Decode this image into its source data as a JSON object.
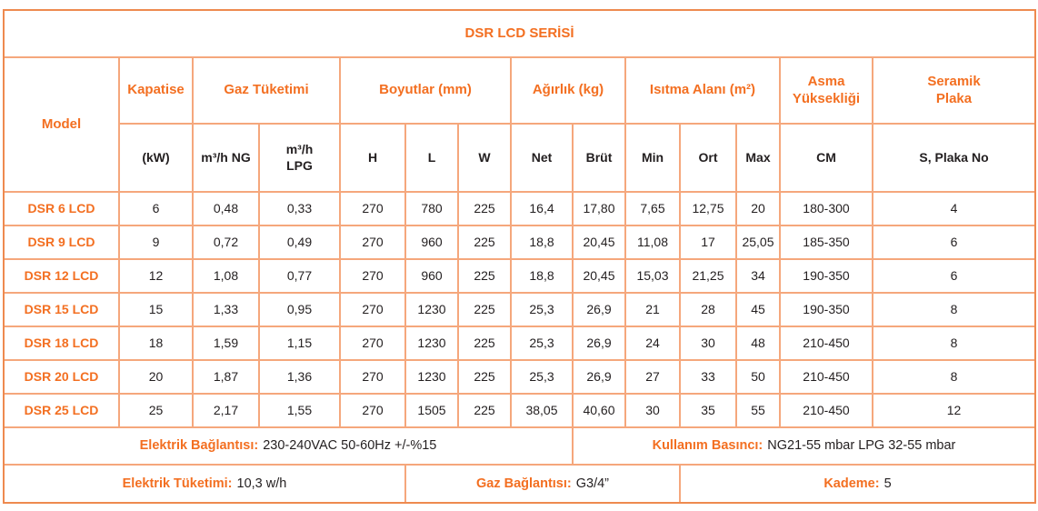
{
  "title": "DSR LCD SERİSİ",
  "colors": {
    "accent_text": "#f36f21",
    "grid_line": "#f5a77c",
    "outer_border": "#ee8a4f",
    "data_text": "#231f20"
  },
  "header": {
    "model_label": "Model",
    "groups": [
      {
        "label": "Kapatise",
        "subs": [
          "(kW)"
        ]
      },
      {
        "label": "Gaz Tüketimi",
        "subs": [
          "m³/h NG",
          "m³/h\nLPG"
        ]
      },
      {
        "label": "Boyutlar (mm)",
        "subs": [
          "H",
          "L",
          "W"
        ]
      },
      {
        "label": "Ağırlık (kg)",
        "subs": [
          "Net",
          "Brüt"
        ]
      },
      {
        "label": "Isıtma Alanı (m²)",
        "subs": [
          "Min",
          "Ort",
          "Max"
        ]
      },
      {
        "label": "Asma\nYüksekliği",
        "subs": [
          "CM"
        ]
      },
      {
        "label": "Seramik\nPlaka",
        "subs": [
          "S, Plaka No"
        ]
      }
    ]
  },
  "rows": [
    {
      "model": "DSR 6 LCD",
      "values": [
        "6",
        "0,48",
        "0,33",
        "270",
        "780",
        "225",
        "16,4",
        "17,80",
        "7,65",
        "12,75",
        "20",
        "180-300",
        "4"
      ]
    },
    {
      "model": "DSR 9 LCD",
      "values": [
        "9",
        "0,72",
        "0,49",
        "270",
        "960",
        "225",
        "18,8",
        "20,45",
        "11,08",
        "17",
        "25,05",
        "185-350",
        "6"
      ]
    },
    {
      "model": "DSR 12 LCD",
      "values": [
        "12",
        "1,08",
        "0,77",
        "270",
        "960",
        "225",
        "18,8",
        "20,45",
        "15,03",
        "21,25",
        "34",
        "190-350",
        "6"
      ]
    },
    {
      "model": "DSR 15 LCD",
      "values": [
        "15",
        "1,33",
        "0,95",
        "270",
        "1230",
        "225",
        "25,3",
        "26,9",
        "21",
        "28",
        "45",
        "190-350",
        "8"
      ]
    },
    {
      "model": "DSR 18 LCD",
      "values": [
        "18",
        "1,59",
        "1,15",
        "270",
        "1230",
        "225",
        "25,3",
        "26,9",
        "24",
        "30",
        "48",
        "210-450",
        "8"
      ]
    },
    {
      "model": "DSR 20 LCD",
      "values": [
        "20",
        "1,87",
        "1,36",
        "270",
        "1230",
        "225",
        "25,3",
        "26,9",
        "27",
        "33",
        "50",
        "210-450",
        "8"
      ]
    },
    {
      "model": "DSR 25 LCD",
      "values": [
        "25",
        "2,17",
        "1,55",
        "270",
        "1505",
        "225",
        "38,05",
        "40,60",
        "30",
        "35",
        "55",
        "210-450",
        "12"
      ]
    }
  ],
  "footer": {
    "electric_connection": {
      "label": "Elektrik Bağlantısı:",
      "value": "230-240VAC 50-60Hz +/-%15"
    },
    "usage_pressure": {
      "label": "Kullanım Basıncı:",
      "value": "NG21-55 mbar LPG 32-55 mbar"
    },
    "electric_consumption": {
      "label": "Elektrik Tüketimi:",
      "value": "10,3 w/h"
    },
    "gas_connection": {
      "label": "Gaz Bağlantısı:",
      "value": "G3/4”"
    },
    "stage": {
      "label": "Kademe:",
      "value": "5"
    }
  }
}
